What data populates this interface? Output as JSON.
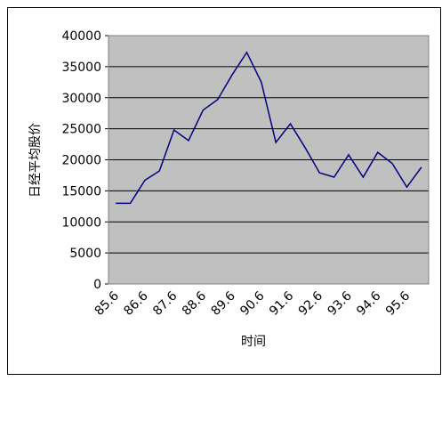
{
  "chart_data": {
    "type": "line",
    "x_label": "时间",
    "y_label": "日经平均股价",
    "categories": [
      "85.6",
      null,
      "86.6",
      null,
      "87.6",
      null,
      "88.6",
      null,
      "89.6",
      null,
      "90.6",
      null,
      "91.6",
      null,
      "92.6",
      null,
      "93.6",
      null,
      "94.6",
      null,
      "95.6",
      null
    ],
    "series": [
      {
        "color": "#000080",
        "values": [
          13000,
          13000,
          16700,
          18200,
          24800,
          23100,
          28000,
          29700,
          33700,
          37300,
          32500,
          22800,
          25800,
          22000,
          17900,
          17200,
          20800,
          17200,
          21200,
          19400,
          15600,
          18800
        ]
      }
    ],
    "ylim": [
      0,
      40000
    ],
    "yticks": [
      0,
      5000,
      10000,
      15000,
      20000,
      25000,
      30000,
      35000,
      40000
    ],
    "grid": true,
    "plot_background": "#c0c0c0"
  }
}
